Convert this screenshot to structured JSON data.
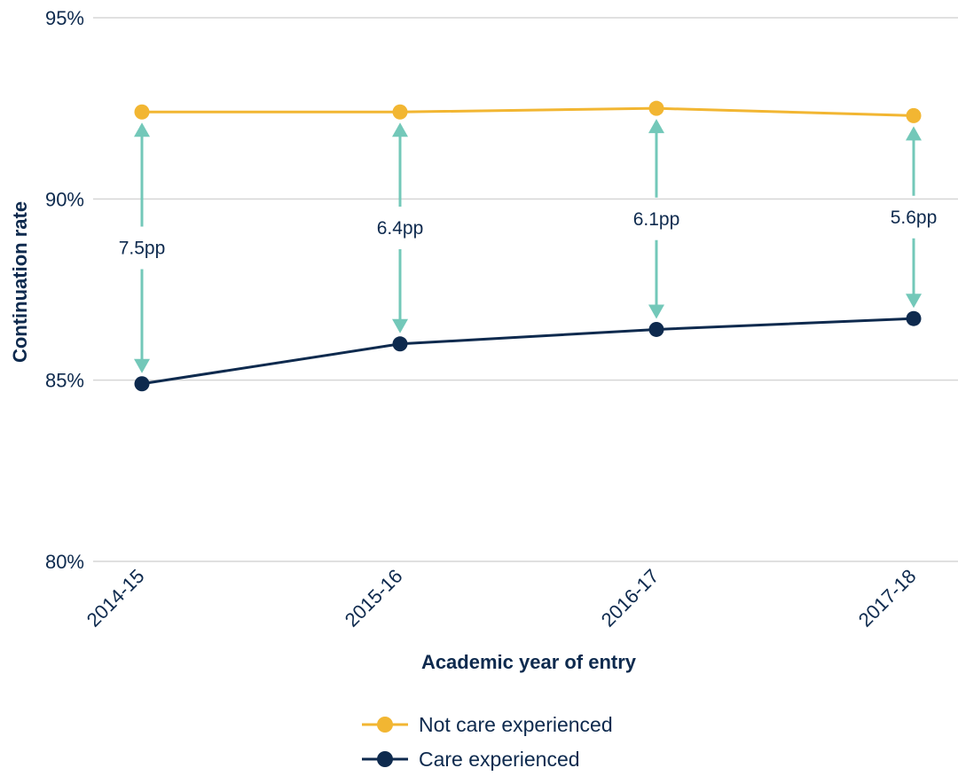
{
  "chart_data": {
    "type": "line",
    "title": "",
    "xlabel": "Academic year of entry",
    "ylabel": "Continuation rate",
    "categories": [
      "2014-15",
      "2015-16",
      "2016-17",
      "2017-18"
    ],
    "ylim": [
      80,
      95
    ],
    "yticks": [
      80,
      85,
      90,
      95
    ],
    "ytick_labels": [
      "80%",
      "85%",
      "90%",
      "95%"
    ],
    "grid": "horizontal",
    "legend_position": "bottom-center",
    "series": [
      {
        "name": "Not care experienced",
        "color": "#f2b632",
        "values": [
          92.4,
          92.4,
          92.5,
          92.3
        ]
      },
      {
        "name": "Care experienced",
        "color": "#0e2a4e",
        "values": [
          84.9,
          86.0,
          86.4,
          86.7
        ]
      }
    ],
    "gap_annotations": {
      "color": "#73c8b9",
      "labels": [
        "7.5pp",
        "6.4pp",
        "6.1pp",
        "5.6pp"
      ]
    }
  }
}
